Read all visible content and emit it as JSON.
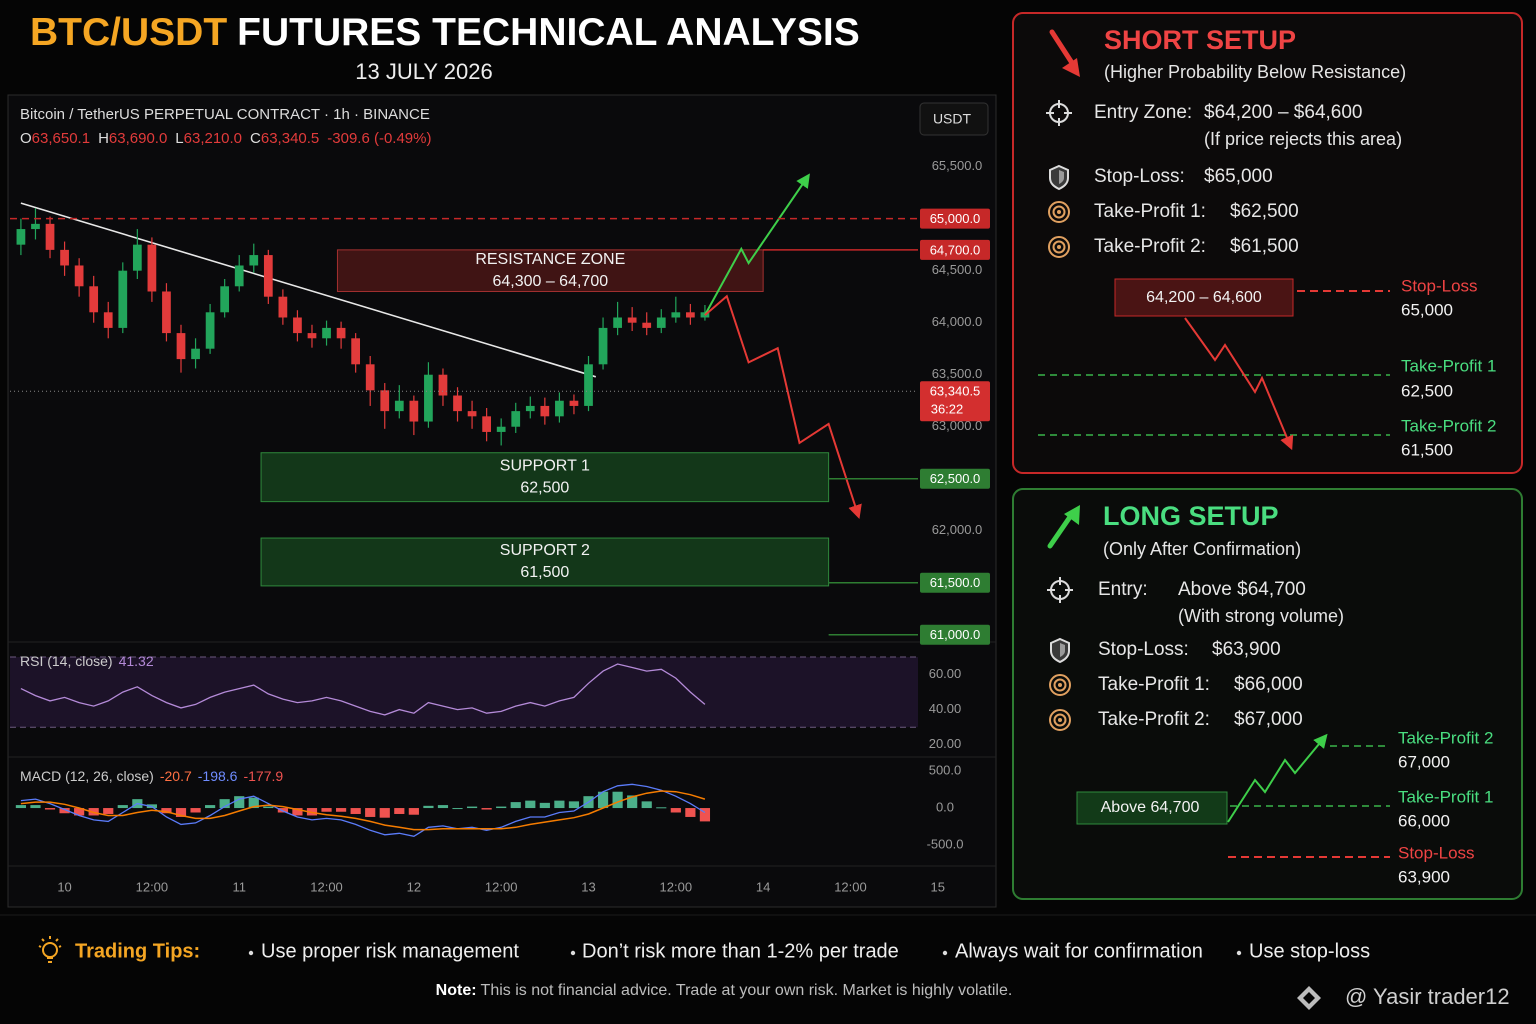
{
  "header": {
    "title_accent": "BTC/USDT",
    "title": "FUTURES TECHNICAL ANALYSIS",
    "date": "13 JULY 2026"
  },
  "chart_data": {
    "type": "candlestick",
    "title": "Bitcoin / TetherUS PERPETUAL CONTRACT · 1h · BINANCE",
    "currency": "USDT",
    "ohlc_legend": [
      {
        "key": "O",
        "text": "63,650.1"
      },
      {
        "key": "H",
        "text": "63,690.0"
      },
      {
        "key": "L",
        "text": "63,210.0"
      },
      {
        "key": "C",
        "text": "63,340.5"
      }
    ],
    "change": "-309.6 (-0.49%)",
    "up_color": "#22a55b",
    "down_color": "#e23b3b",
    "x": [
      -6,
      -4,
      -2,
      0,
      2,
      4,
      6,
      8,
      10,
      12,
      14,
      16,
      18,
      20,
      22,
      24,
      26,
      28,
      30,
      32,
      34,
      36,
      38,
      40,
      42,
      44,
      46,
      48,
      50,
      52,
      54,
      56,
      58,
      60,
      62,
      64,
      66,
      68,
      70,
      72,
      74,
      76,
      78,
      80,
      82,
      84,
      86,
      88
    ],
    "open": [
      64750,
      64900,
      64950,
      64700,
      64550,
      64350,
      64100,
      63950,
      64500,
      64750,
      64300,
      63900,
      63650,
      63750,
      64100,
      64350,
      64550,
      64650,
      64250,
      64050,
      63900,
      63850,
      63950,
      63850,
      63600,
      63350,
      63150,
      63250,
      63050,
      63500,
      63300,
      63150,
      63100,
      62950,
      63000,
      63150,
      63200,
      63100,
      63250,
      63200,
      63600,
      63950,
      64050,
      64000,
      63950,
      64050,
      64100,
      64050
    ],
    "high": [
      65000,
      65100,
      65020,
      64780,
      64620,
      64450,
      64200,
      64580,
      64900,
      64820,
      64380,
      63980,
      63850,
      64180,
      64420,
      64650,
      64760,
      64700,
      64320,
      64120,
      63980,
      64020,
      64010,
      63900,
      63680,
      63420,
      63400,
      63300,
      63620,
      63560,
      63380,
      63250,
      63180,
      63080,
      63230,
      63290,
      63280,
      63330,
      63310,
      63680,
      64050,
      64200,
      64150,
      64100,
      64130,
      64250,
      64180,
      64170
    ],
    "low": [
      64650,
      64800,
      64620,
      64450,
      64250,
      64000,
      63850,
      63900,
      64420,
      64200,
      63820,
      63520,
      63560,
      63700,
      64050,
      64300,
      64480,
      64180,
      63980,
      63820,
      63760,
      63780,
      63750,
      63520,
      63200,
      62980,
      63080,
      62920,
      62990,
      63200,
      63050,
      62980,
      62860,
      62820,
      62940,
      63080,
      63020,
      63040,
      63120,
      63150,
      63550,
      63880,
      63920,
      63880,
      63900,
      64000,
      63980,
      64020
    ],
    "close": [
      64900,
      64950,
      64700,
      64550,
      64350,
      64100,
      63950,
      64500,
      64750,
      64300,
      63900,
      63650,
      63750,
      64100,
      64350,
      64550,
      64650,
      64250,
      64050,
      63900,
      63850,
      63950,
      63850,
      63600,
      63350,
      63150,
      63250,
      63050,
      63500,
      63300,
      63150,
      63100,
      62950,
      63000,
      63150,
      63200,
      63100,
      63250,
      63200,
      63600,
      63950,
      64050,
      64000,
      63950,
      64050,
      64100,
      64050,
      64100
    ],
    "xlim": [
      -7.5,
      128
    ],
    "xticks": [
      {
        "value": 0,
        "label": "10"
      },
      {
        "value": 12,
        "label": "12:00"
      },
      {
        "value": 24,
        "label": "11"
      },
      {
        "value": 36,
        "label": "12:00"
      },
      {
        "value": 48,
        "label": "12"
      },
      {
        "value": 60,
        "label": "12:00"
      },
      {
        "value": 72,
        "label": "13"
      },
      {
        "value": 84,
        "label": "12:00"
      },
      {
        "value": 96,
        "label": "14"
      },
      {
        "value": 108,
        "label": "12:00"
      },
      {
        "value": 120,
        "label": "15"
      }
    ],
    "ylim": [
      60950,
      65660
    ],
    "yticks": [
      {
        "value": 65500,
        "label": "65,500.0"
      },
      {
        "value": 65000,
        "label": "65,000.0"
      },
      {
        "value": 64500,
        "label": "64,500.0"
      },
      {
        "value": 64000,
        "label": "64,000.0"
      },
      {
        "value": 63500,
        "label": "63,500.0"
      },
      {
        "value": 63000,
        "label": "63,000.0"
      },
      {
        "value": 62500,
        "label": "62,500.0"
      },
      {
        "value": 62000,
        "label": "62,000.0"
      },
      {
        "value": 61500,
        "label": "61,500.0"
      },
      {
        "value": 61000,
        "label": "61,000.0"
      }
    ],
    "price_tags": [
      {
        "value": 65000,
        "label": "65,000.0",
        "color": "#c62828",
        "line": "dashed",
        "from_x": -7.5
      },
      {
        "value": 64700,
        "label": "64,700.0",
        "color": "#c62828",
        "line": "solid",
        "from_x": 96
      },
      {
        "value": 62500,
        "label": "62,500.0",
        "color": "#2e7d32",
        "line": "solid",
        "from_x": 105
      },
      {
        "value": 61500,
        "label": "61,500.0",
        "color": "#2e7d32",
        "line": "solid",
        "from_x": 105
      },
      {
        "value": 61000,
        "label": "61,000.0",
        "color": "#2e7d32",
        "line": "solid",
        "from_x": 105
      }
    ],
    "last_price": {
      "value": 63340.5,
      "label": "63,340.5",
      "timer": "36:22",
      "color": "#d32f2f"
    },
    "trendline": {
      "x": [
        -6,
        73
      ],
      "y": [
        65150,
        63480
      ],
      "color": "#e8e8e8"
    },
    "zones": [
      {
        "label": "RESISTANCE ZONE",
        "range": "64,300 – 64,700",
        "low": 64300,
        "high": 64700,
        "x": [
          37.5,
          96
        ],
        "fill": "#4a1616",
        "stroke": "#a33030"
      },
      {
        "label": "SUPPORT 1",
        "range": "62,500",
        "low": 62280,
        "high": 62750,
        "x": [
          27,
          105
        ],
        "fill": "#15401c",
        "stroke": "#2f8a3c"
      },
      {
        "label": "SUPPORT 2",
        "range": "61,500",
        "low": 61470,
        "high": 61930,
        "x": [
          27,
          105
        ],
        "fill": "#15401c",
        "stroke": "#2f8a3c"
      }
    ],
    "projections": [
      {
        "color": "#3ecf4a",
        "x": [
          88,
          93,
          94,
          102
        ],
        "y": [
          64073,
          64709,
          64573,
          65391
        ]
      },
      {
        "color": "#e53935",
        "x": [
          88,
          91,
          94,
          98,
          101,
          105,
          109
        ],
        "y": [
          64073,
          64255,
          63618,
          63755,
          62845,
          63027,
          62164
        ]
      }
    ],
    "rsi": {
      "label": "RSI (14, close)",
      "value_label": 41.32,
      "color": "#b48ad8",
      "values": [
        52,
        48,
        45,
        47,
        44,
        42,
        45,
        50,
        53,
        48,
        44,
        41,
        43,
        47,
        50,
        52,
        54,
        49,
        46,
        44,
        45,
        47,
        45,
        42,
        39,
        37,
        40,
        38,
        44,
        42,
        40,
        41,
        38,
        39,
        42,
        44,
        42,
        45,
        47,
        55,
        62,
        66,
        64,
        62,
        63,
        58,
        50,
        43
      ],
      "ylim": [
        17,
        74
      ],
      "yticks": [
        {
          "value": 60,
          "label": "60.00"
        },
        {
          "value": 40,
          "label": "40.00"
        },
        {
          "value": 20,
          "label": "20.00"
        }
      ],
      "band": [
        30,
        70
      ]
    },
    "macd": {
      "label": "MACD (12, 26, close)",
      "readouts": [
        {
          "value": -20.7,
          "color": "#ff7043"
        },
        {
          "value": -198.6,
          "color": "#6f8cff"
        },
        {
          "value": -177.9,
          "color": "#ef5350"
        }
      ],
      "macd_line": {
        "color": "#5b7cfa",
        "values": [
          100,
          120,
          60,
          -20,
          -100,
          -160,
          -180,
          -60,
          60,
          20,
          -120,
          -220,
          -200,
          -100,
          20,
          120,
          160,
          60,
          -40,
          -120,
          -160,
          -140,
          -160,
          -220,
          -300,
          -360,
          -340,
          -380,
          -260,
          -240,
          -280,
          -260,
          -300,
          -260,
          -180,
          -120,
          -120,
          -60,
          -40,
          80,
          220,
          300,
          320,
          290,
          240,
          160,
          60,
          -60
        ]
      },
      "signal": {
        "color": "#f57c00",
        "values": [
          60,
          80,
          80,
          50,
          0,
          -60,
          -100,
          -100,
          -60,
          -30,
          -50,
          -100,
          -140,
          -140,
          -100,
          -40,
          20,
          40,
          20,
          -20,
          -60,
          -90,
          -110,
          -140,
          -180,
          -230,
          -260,
          -290,
          -290,
          -280,
          -280,
          -280,
          -280,
          -280,
          -260,
          -220,
          -190,
          -160,
          -130,
          -80,
          0,
          80,
          150,
          200,
          230,
          220,
          180,
          120
        ]
      },
      "histogram": {
        "up_color": "#4caf8a",
        "down_color": "#ef5350",
        "values": [
          40,
          40,
          -20,
          -70,
          -100,
          -100,
          -80,
          40,
          120,
          50,
          -70,
          -120,
          -60,
          40,
          120,
          160,
          140,
          20,
          -60,
          -100,
          -100,
          -50,
          -50,
          -80,
          -120,
          -130,
          -80,
          -90,
          30,
          40,
          0,
          20,
          -20,
          20,
          80,
          100,
          70,
          100,
          90,
          160,
          220,
          220,
          170,
          90,
          10,
          -60,
          -120,
          -180
        ]
      },
      "ylim": [
        -700,
        580
      ],
      "yticks": [
        {
          "value": 500,
          "label": "500.0"
        },
        {
          "value": 0,
          "label": "0.0"
        },
        {
          "value": -500,
          "label": "-500.0"
        }
      ]
    }
  },
  "short_setup": {
    "title": "SHORT SETUP",
    "subtitle": "(Higher Probability Below Resistance)",
    "rows": [
      {
        "label": "Entry Zone:",
        "value": "$64,200 – $64,600",
        "note": "(If price rejects this area)"
      },
      {
        "label": "Stop-Loss:",
        "value": "$65,000"
      },
      {
        "label": "Take-Profit 1:",
        "value": "$62,500"
      },
      {
        "label": "Take-Profit 2:",
        "value": "$61,500"
      }
    ],
    "diagram": {
      "entry": "64,200 – 64,600",
      "levels": [
        {
          "name": "Stop-Loss",
          "value": "65,000"
        },
        {
          "name": "Take-Profit 1",
          "value": "62,500"
        },
        {
          "name": "Take-Profit 2",
          "value": "61,500"
        }
      ]
    }
  },
  "long_setup": {
    "title": "LONG SETUP",
    "subtitle": "(Only After Confirmation)",
    "rows": [
      {
        "label": "Entry:",
        "value": "Above $64,700",
        "note": "(With strong volume)"
      },
      {
        "label": "Stop-Loss:",
        "value": "$63,900"
      },
      {
        "label": "Take-Profit 1:",
        "value": "$66,000"
      },
      {
        "label": "Take-Profit 2:",
        "value": "$67,000"
      }
    ],
    "diagram": {
      "entry": "Above 64,700",
      "levels": [
        {
          "name": "Take-Profit 2",
          "value": "67,000"
        },
        {
          "name": "Take-Profit 1",
          "value": "66,000"
        },
        {
          "name": "Stop-Loss",
          "value": "63,900"
        }
      ]
    }
  },
  "tips": {
    "title": "Trading Tips:",
    "items": [
      "Use proper risk management",
      "Don’t risk more than 1-2% per trade",
      "Always wait for confirmation",
      "Use stop-loss"
    ]
  },
  "note": {
    "label": "Note:",
    "text": "This is not financial advice. Trade at your own risk. Market is highly volatile."
  },
  "watermark": "@ Yasir trader12"
}
